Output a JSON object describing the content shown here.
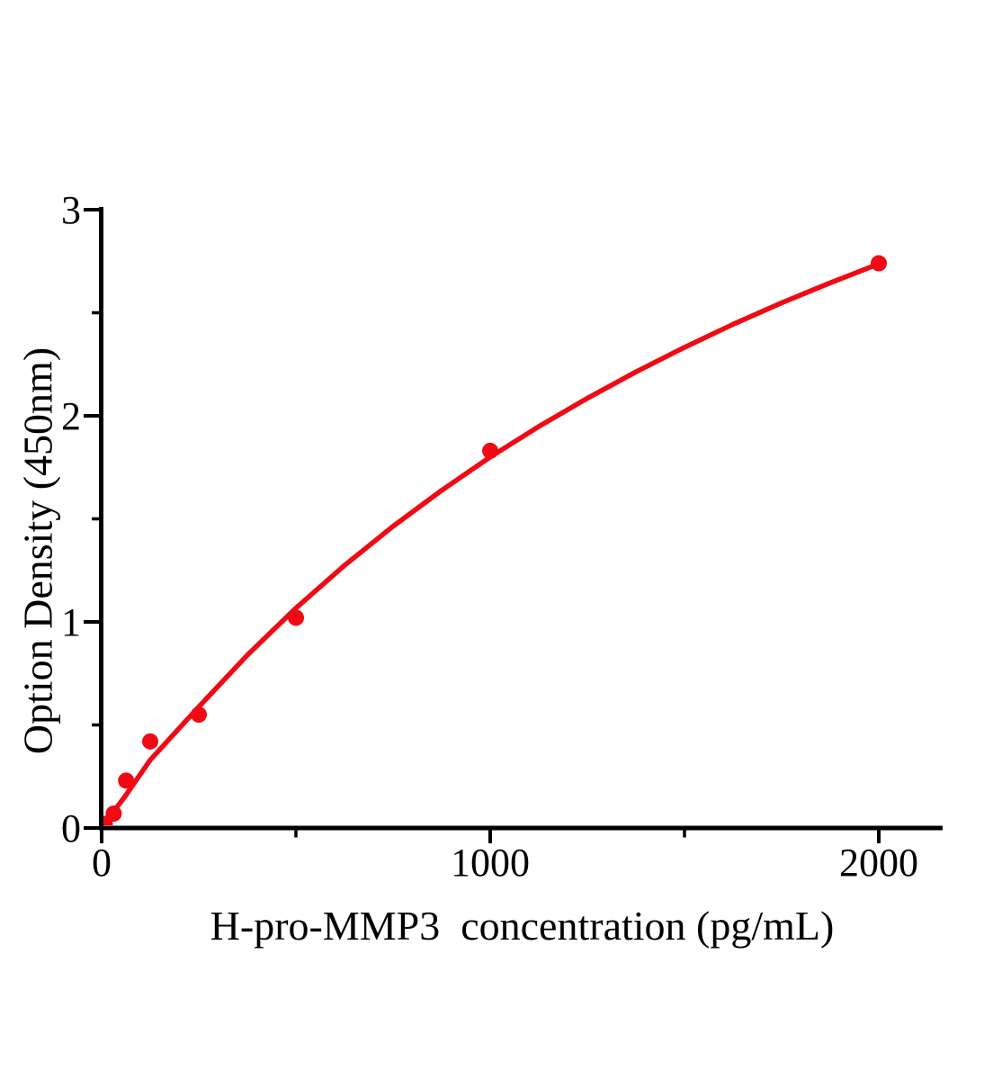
{
  "figure": {
    "background": "#ffffff"
  },
  "chart_data": {
    "type": "scatter",
    "title": "",
    "xlabel": "H-pro-MMP3  concentration (pg/mL)",
    "ylabel": "Option Density (450nm)",
    "xlim": [
      0,
      2165
    ],
    "ylim": [
      0,
      3
    ],
    "grid": false,
    "legend": "none",
    "x_ticks_major": [
      0,
      1000,
      2000
    ],
    "x_ticks_minor": [
      500,
      1500
    ],
    "y_ticks_major": [
      0,
      1,
      2,
      3
    ],
    "y_ticks_minor": [
      0.5,
      1.5,
      2.5
    ],
    "series": [
      {
        "name": "standard-points",
        "type": "scatter",
        "marker": "filled-circle",
        "points": [
          [
            8,
            0.02
          ],
          [
            31,
            0.07
          ],
          [
            63,
            0.23
          ],
          [
            125,
            0.42
          ],
          [
            250,
            0.55
          ],
          [
            500,
            1.02
          ],
          [
            1000,
            1.83
          ],
          [
            2000,
            2.74
          ]
        ]
      },
      {
        "name": "fitted-curve",
        "type": "line",
        "points": [
          [
            0,
            0.0
          ],
          [
            10,
            0.026
          ],
          [
            31,
            0.08
          ],
          [
            62,
            0.158
          ],
          [
            125,
            0.33
          ],
          [
            250,
            0.588
          ],
          [
            375,
            0.839
          ],
          [
            500,
            1.067
          ],
          [
            625,
            1.274
          ],
          [
            750,
            1.464
          ],
          [
            875,
            1.638
          ],
          [
            1000,
            1.8
          ],
          [
            1125,
            1.948
          ],
          [
            1250,
            2.085
          ],
          [
            1375,
            2.213
          ],
          [
            1500,
            2.332
          ],
          [
            1625,
            2.444
          ],
          [
            1750,
            2.548
          ],
          [
            1875,
            2.645
          ],
          [
            2000,
            2.737
          ]
        ]
      }
    ],
    "colors": {
      "series": "#f00a14",
      "axis": "#000000",
      "background": "#ffffff"
    }
  }
}
